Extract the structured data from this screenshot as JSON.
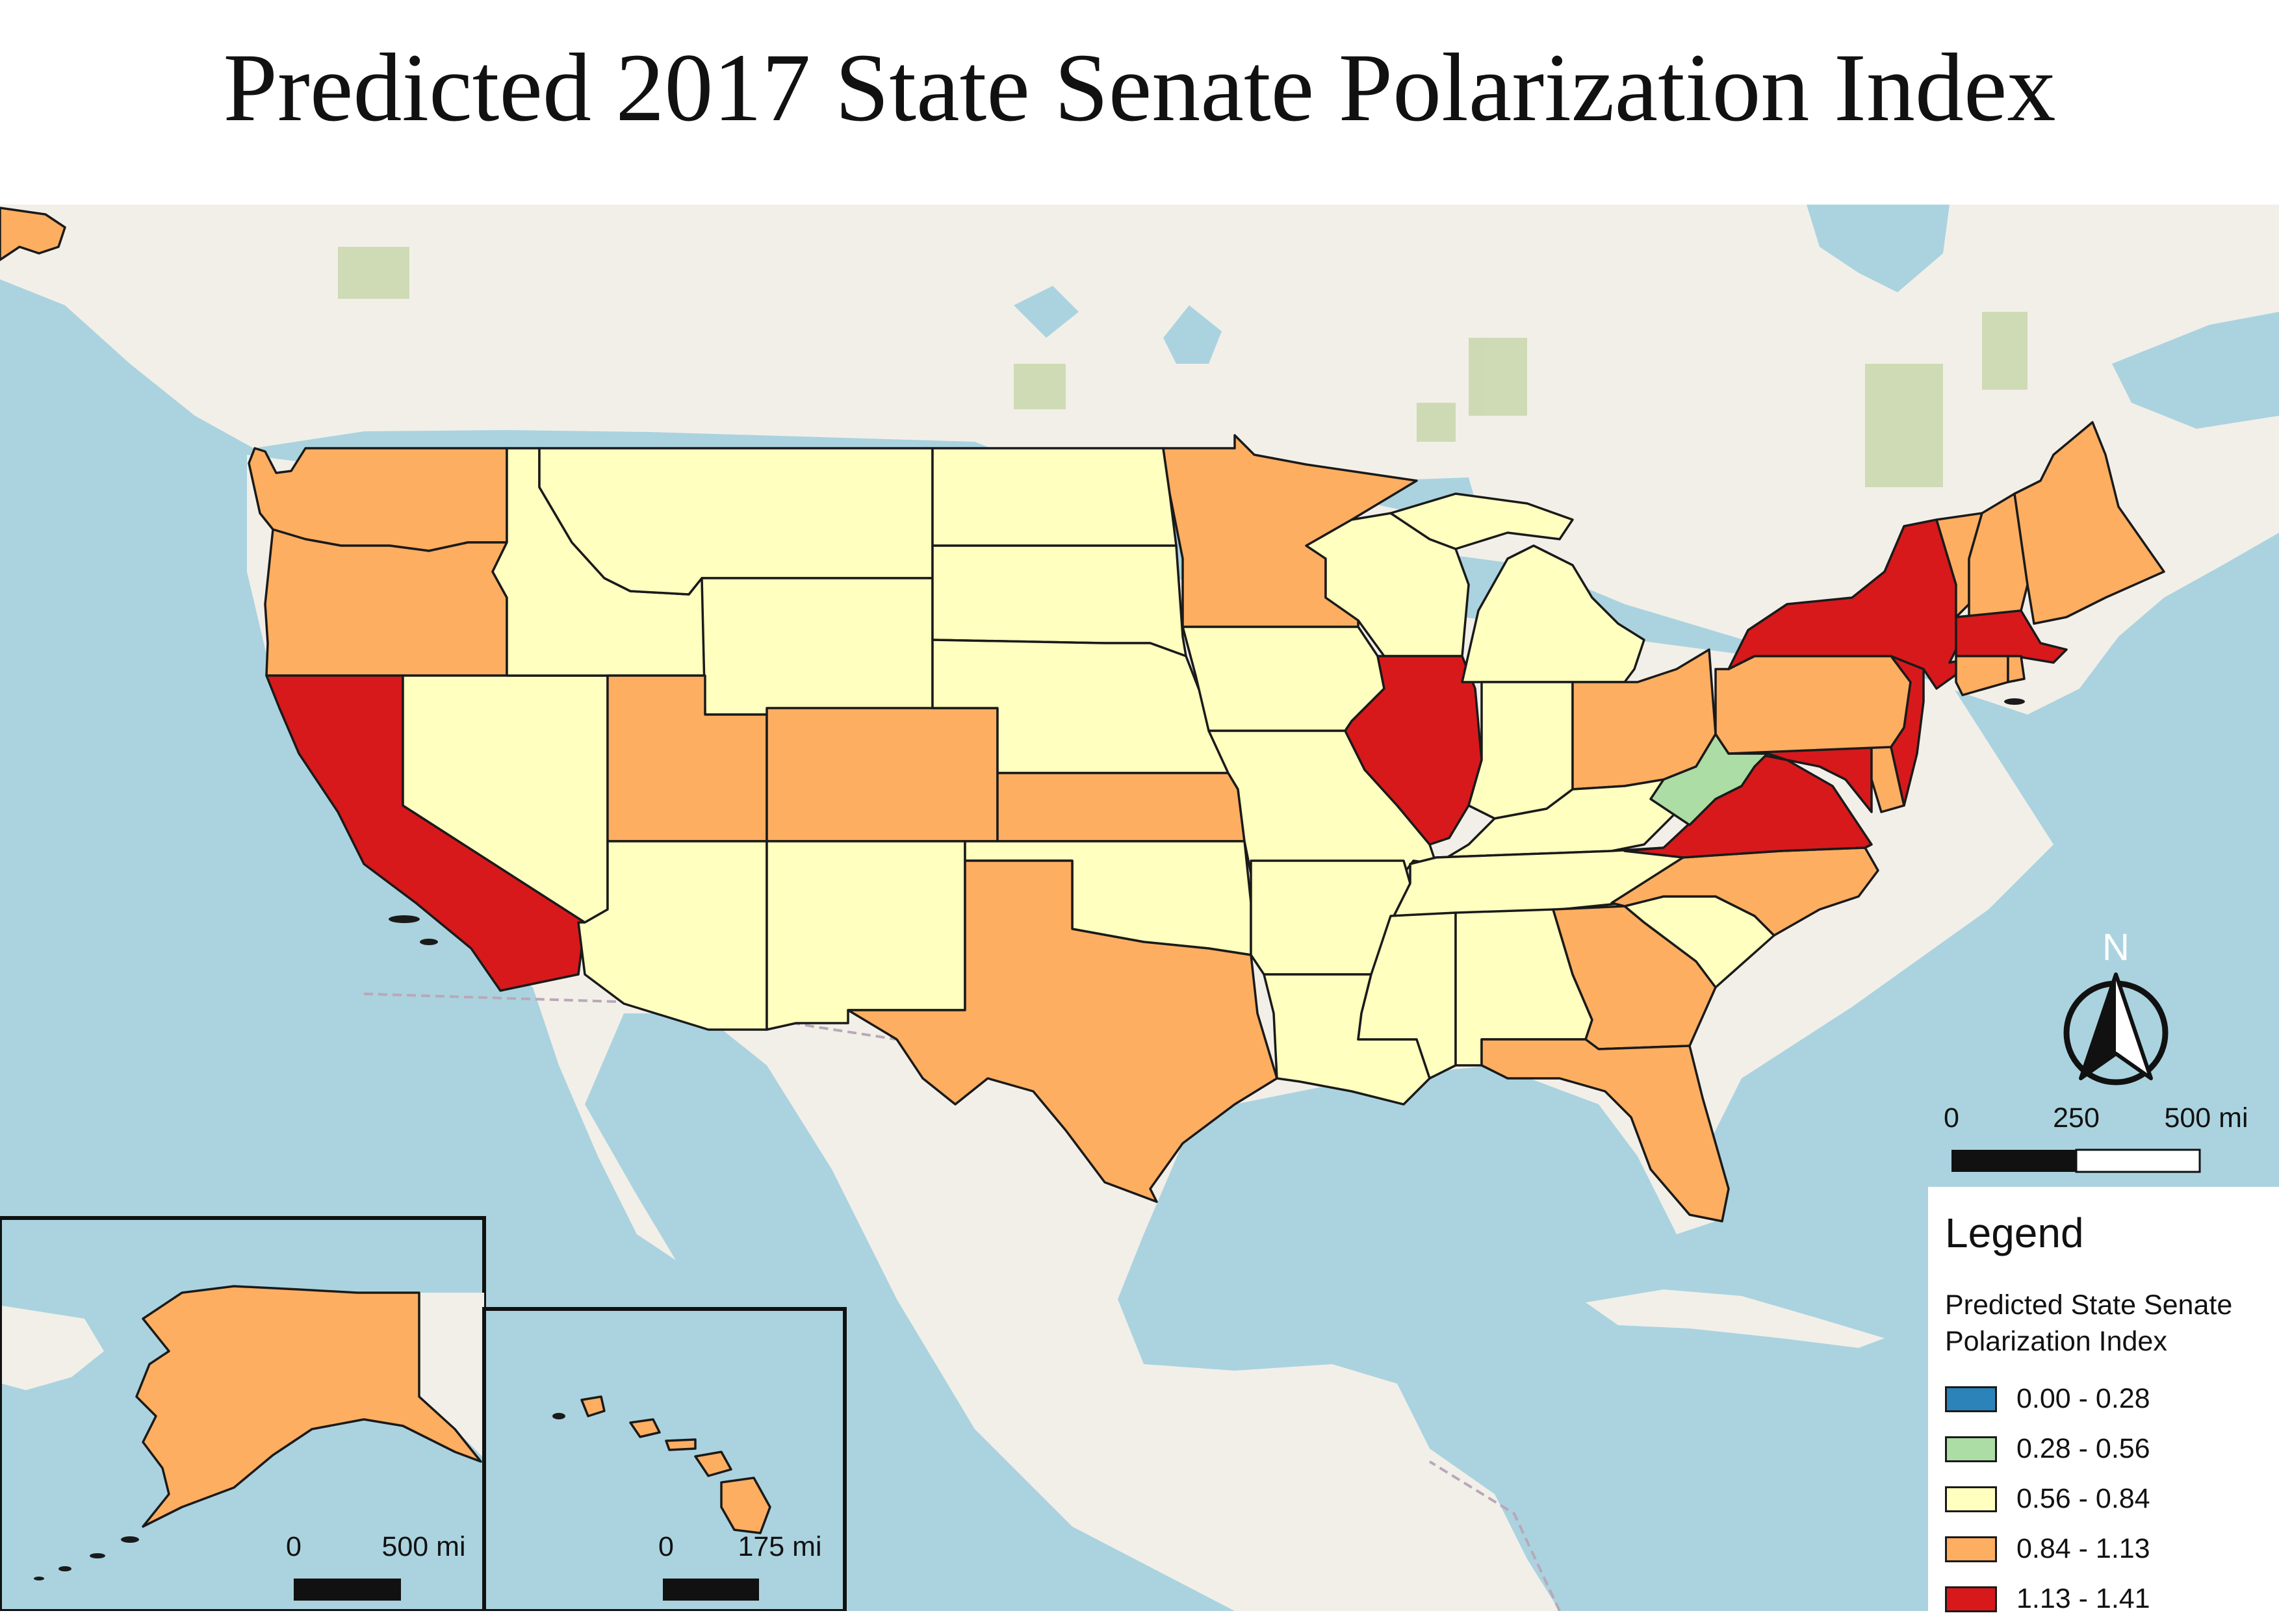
{
  "title": "Predicted 2017 State Senate Polarization Index",
  "colors": {
    "ocean": "#aad3df",
    "land": "#f2efe9",
    "forest": "#c8d7ab",
    "border_line": "#b9a8b9",
    "class_1": "#2b83ba",
    "class_2": "#abdda4",
    "class_3": "#ffffbf",
    "class_4": "#fdae61",
    "class_5": "#d7191c"
  },
  "legend": {
    "heading": "Legend",
    "subtitle_line1": "Predicted State Senate",
    "subtitle_line2": "Polarization Index",
    "classes": [
      {
        "range": "0.00 - 0.28",
        "color": "#2b83ba"
      },
      {
        "range": "0.28 - 0.56",
        "color": "#abdda4"
      },
      {
        "range": "0.56 - 0.84",
        "color": "#ffffbf"
      },
      {
        "range": "0.84 - 1.13",
        "color": "#fdae61"
      },
      {
        "range": "1.13 - 1.41",
        "color": "#d7191c"
      }
    ]
  },
  "north_arrow": {
    "label": "N"
  },
  "scale_bar_main": {
    "tick_0": "0",
    "tick_mid": "250",
    "tick_end": "500 mi"
  },
  "inset_alaska": {
    "state": "Alaska",
    "class": 4,
    "scale_start": "0",
    "scale_end": "500 mi"
  },
  "inset_hawaii": {
    "state": "Hawaii",
    "class": 4,
    "scale_start": "0",
    "scale_end": "175 mi"
  },
  "states": [
    {
      "name": "Washington",
      "class": 4
    },
    {
      "name": "Oregon",
      "class": 4
    },
    {
      "name": "California",
      "class": 5
    },
    {
      "name": "Nevada",
      "class": 3
    },
    {
      "name": "Idaho",
      "class": 3
    },
    {
      "name": "Montana",
      "class": 3
    },
    {
      "name": "Wyoming",
      "class": 3
    },
    {
      "name": "Utah",
      "class": 4
    },
    {
      "name": "Arizona",
      "class": 3
    },
    {
      "name": "Colorado",
      "class": 4
    },
    {
      "name": "New Mexico",
      "class": 3
    },
    {
      "name": "North Dakota",
      "class": 3
    },
    {
      "name": "South Dakota",
      "class": 3
    },
    {
      "name": "Nebraska",
      "class": 3
    },
    {
      "name": "Kansas",
      "class": 4
    },
    {
      "name": "Oklahoma",
      "class": 3
    },
    {
      "name": "Texas",
      "class": 4
    },
    {
      "name": "Minnesota",
      "class": 4
    },
    {
      "name": "Iowa",
      "class": 3
    },
    {
      "name": "Missouri",
      "class": 3
    },
    {
      "name": "Arkansas",
      "class": 3
    },
    {
      "name": "Louisiana",
      "class": 3
    },
    {
      "name": "Wisconsin",
      "class": 3
    },
    {
      "name": "Illinois",
      "class": 5
    },
    {
      "name": "Michigan",
      "class": 3
    },
    {
      "name": "Indiana",
      "class": 3
    },
    {
      "name": "Ohio",
      "class": 4
    },
    {
      "name": "Kentucky",
      "class": 3
    },
    {
      "name": "Tennessee",
      "class": 3
    },
    {
      "name": "Mississippi",
      "class": 3
    },
    {
      "name": "Alabama",
      "class": 3
    },
    {
      "name": "Georgia",
      "class": 4
    },
    {
      "name": "Florida",
      "class": 4
    },
    {
      "name": "South Carolina",
      "class": 3
    },
    {
      "name": "North Carolina",
      "class": 4
    },
    {
      "name": "Virginia",
      "class": 5
    },
    {
      "name": "West Virginia",
      "class": 2
    },
    {
      "name": "Maryland",
      "class": 5
    },
    {
      "name": "Delaware",
      "class": 4
    },
    {
      "name": "Pennsylvania",
      "class": 4
    },
    {
      "name": "New Jersey",
      "class": 5
    },
    {
      "name": "New York",
      "class": 5
    },
    {
      "name": "Connecticut",
      "class": 4
    },
    {
      "name": "Rhode Island",
      "class": 4
    },
    {
      "name": "Massachusetts",
      "class": 5
    },
    {
      "name": "Vermont",
      "class": 4
    },
    {
      "name": "New Hampshire",
      "class": 4
    },
    {
      "name": "Maine",
      "class": 4
    }
  ]
}
